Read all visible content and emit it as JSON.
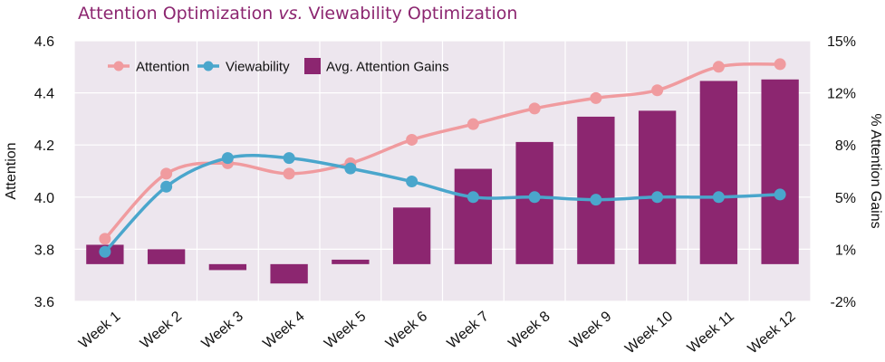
{
  "chart_data": {
    "type": "bar+line",
    "title_parts": [
      "Attention Optimization ",
      "vs.",
      " Viewability Optimization"
    ],
    "categories": [
      "Week 1",
      "Week 2",
      "Week 3",
      "Week 4",
      "Week 5",
      "Week 6",
      "Week 7",
      "Week 8",
      "Week 9",
      "Week 10",
      "Week 11",
      "Week 12"
    ],
    "ylabel_left": "Attention",
    "ylabel_right": "% Attention Gains",
    "ylim_left": [
      3.6,
      4.6
    ],
    "ylim_right": [
      -2.5,
      15
    ],
    "yticks_left": [
      3.6,
      3.8,
      4.0,
      4.2,
      4.4,
      4.6
    ],
    "yticks_left_labels": [
      "3.6",
      "3.8",
      "4.0",
      "4.2",
      "4.4",
      "4.6"
    ],
    "yticks_right": [
      -2.5,
      1.0,
      4.5,
      8.0,
      11.5,
      15.0
    ],
    "yticks_right_labels": [
      "-2%",
      "1%",
      "5%",
      "8%",
      "12%",
      "15%"
    ],
    "series": [
      {
        "name": "Attention",
        "kind": "line",
        "axis": "left",
        "color": "#f09b9f",
        "values": [
          3.84,
          4.09,
          4.13,
          4.09,
          4.13,
          4.22,
          4.28,
          4.34,
          4.38,
          4.41,
          4.5,
          4.51
        ]
      },
      {
        "name": "Viewability",
        "kind": "line",
        "axis": "left",
        "color": "#4aa6cc",
        "values": [
          3.79,
          4.04,
          4.15,
          4.15,
          4.11,
          4.06,
          4.0,
          4.0,
          3.99,
          4.0,
          4.0,
          4.01
        ]
      },
      {
        "name": "Avg. Attention Gains",
        "kind": "bar",
        "axis": "right",
        "color": "#8c2670",
        "values": [
          1.3,
          1.0,
          -0.4,
          -1.3,
          0.3,
          3.8,
          6.4,
          8.2,
          9.9,
          10.3,
          12.3,
          12.4
        ]
      }
    ],
    "legend_position": "top-left",
    "plot_background": "#ede6ee",
    "grid": true
  }
}
